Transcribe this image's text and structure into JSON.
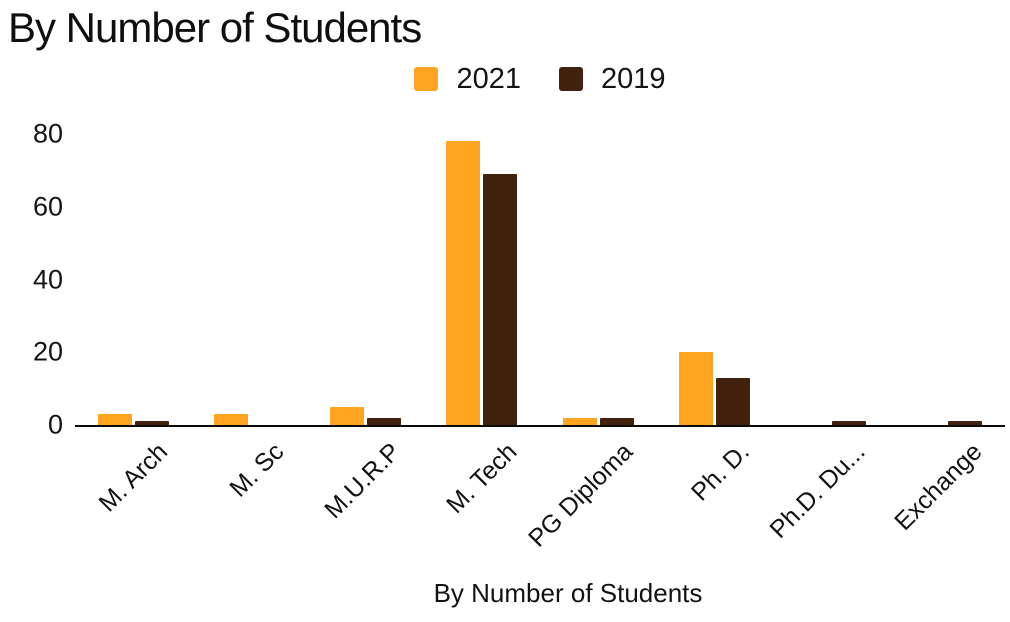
{
  "chart_data": {
    "type": "bar",
    "title": "By Number of Students",
    "xlabel": "By Number of Students",
    "ylabel": "",
    "categories": [
      "M. Arch",
      "M. Sc",
      "M.U.R.P",
      "M. Tech",
      "PG Diploma",
      "Ph. D.",
      "Ph.D. Du...",
      "Exchange"
    ],
    "series": [
      {
        "name": "2021",
        "color": "#FFA41E",
        "values": [
          3,
          3,
          5,
          78,
          2,
          20,
          0,
          0
        ]
      },
      {
        "name": "2019",
        "color": "#40220F",
        "values": [
          1,
          0,
          2,
          69,
          2,
          13,
          1,
          1
        ]
      }
    ],
    "ylim": [
      0,
      80
    ],
    "yticks": [
      0,
      20,
      40,
      60,
      80
    ],
    "grid": false,
    "legend_position": "top-center",
    "axis_color": "#0a0a0a",
    "text_color": "#121212"
  }
}
